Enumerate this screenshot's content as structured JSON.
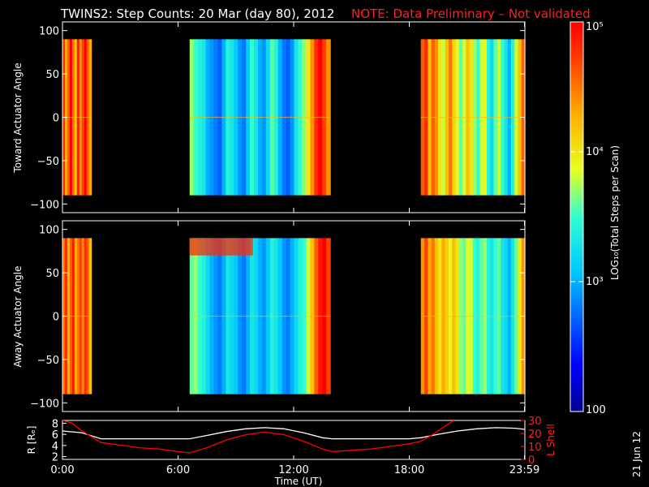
{
  "title": {
    "main": "TWINS2: Step Counts: 20 Mar (day  80), 2012",
    "note": "NOTE: Data Preliminary – Not validated"
  },
  "date_stamp": "21 Jun 12",
  "colorbar": {
    "label": "LOG₁₀(Total Steps per Scan)",
    "ticks": [
      "100",
      "10³",
      "10⁴",
      "10⁵"
    ],
    "tick_values": [
      100,
      1000,
      10000,
      100000
    ],
    "scale": "log",
    "range": [
      100,
      100000
    ],
    "colormap": "rainbow (blue to red)"
  },
  "x_axis": {
    "label": "Time (UT)",
    "ticks": [
      "0:00",
      "6:00",
      "12:00",
      "18:00",
      "23:59"
    ],
    "tick_hours": [
      0,
      6,
      12,
      18,
      23.98
    ],
    "range_hours": [
      0,
      24
    ]
  },
  "chart_data": [
    {
      "type": "heatmap",
      "panel": "toward",
      "ylabel": "Toward Actuator Angle",
      "yticks": [
        "100",
        "50",
        "0",
        "−50",
        "−100"
      ],
      "ytick_values": [
        100,
        50,
        0,
        -50,
        -100
      ],
      "ylim": [
        -110,
        110
      ],
      "z_scale": "log10 counts",
      "data_blocks_hours": [
        [
          0,
          1.5
        ],
        [
          6.6,
          13.9
        ],
        [
          18.6,
          24
        ]
      ],
      "angle_extent": [
        -90,
        90
      ],
      "column_log10_counts": {
        "block1": [
          4.8,
          4.3,
          4.6,
          5.0,
          4.5,
          4.2,
          4.9,
          4.4,
          4.7,
          5.0,
          4.6,
          4.3
        ],
        "block2": [
          3.7,
          3.5,
          3.4,
          3.3,
          3.0,
          2.9,
          2.8,
          2.7,
          3.0,
          3.4,
          3.3,
          3.1,
          2.9,
          2.8,
          3.1,
          3.5,
          3.3,
          3.0,
          2.9,
          3.2,
          3.6,
          3.4,
          3.0,
          2.8,
          2.7,
          2.9,
          3.3,
          3.5,
          3.7,
          4.0,
          4.4,
          4.8,
          5.0,
          4.7,
          4.4
        ],
        "block3": [
          4.6,
          4.8,
          4.2,
          4.6,
          4.4,
          4.0,
          3.8,
          4.2,
          4.5,
          4.1,
          3.9,
          3.6,
          3.8,
          4.2,
          4.0,
          3.7,
          3.5,
          3.8,
          3.9,
          3.4,
          3.2,
          3.6,
          3.8,
          3.5,
          3.3,
          3.0,
          3.4,
          3.8,
          4.2,
          4.6
        ]
      }
    },
    {
      "type": "heatmap",
      "panel": "away",
      "ylabel": "Away Actuator Angle",
      "yticks": [
        "100",
        "50",
        "0",
        "−50",
        "−100"
      ],
      "ytick_values": [
        100,
        50,
        0,
        -50,
        -100
      ],
      "ylim": [
        -110,
        110
      ],
      "z_scale": "log10 counts",
      "data_blocks_hours": [
        [
          0,
          1.5
        ],
        [
          6.6,
          13.9
        ],
        [
          18.6,
          24
        ]
      ],
      "angle_extent": [
        -90,
        90
      ],
      "column_log10_counts": {
        "block1": [
          4.5,
          4.8,
          4.2,
          4.6,
          4.9,
          4.3,
          4.5,
          4.7,
          4.4,
          4.8,
          4.6,
          4.2
        ],
        "block2": [
          3.6,
          3.7,
          3.5,
          3.4,
          3.2,
          3.0,
          2.9,
          2.8,
          3.0,
          3.3,
          3.2,
          3.1,
          2.9,
          2.8,
          3.0,
          3.3,
          3.2,
          3.0,
          2.9,
          3.1,
          3.4,
          3.3,
          3.1,
          2.9,
          2.8,
          3.0,
          3.2,
          3.4,
          3.5,
          3.8,
          4.2,
          4.6,
          4.9,
          5.0,
          4.7
        ],
        "block3": [
          4.4,
          4.7,
          4.3,
          4.5,
          4.2,
          4.0,
          4.3,
          4.1,
          3.9,
          4.2,
          4.0,
          3.7,
          3.6,
          3.9,
          3.8,
          3.5,
          3.4,
          3.6,
          3.7,
          3.4,
          3.3,
          3.5,
          3.6,
          3.3,
          3.2,
          3.0,
          3.3,
          3.6,
          4.0,
          4.4
        ]
      },
      "top_band_log10": 4.8
    },
    {
      "type": "line",
      "panel": "orbit",
      "ylabel": "R [Rₑ]",
      "y2label": "L Shell",
      "yticks": [
        "8",
        "6",
        "4",
        "2"
      ],
      "ytick_values": [
        8,
        6,
        4,
        2
      ],
      "ylim": [
        1.5,
        8.5
      ],
      "y2ticks": [
        "30",
        "20",
        "10",
        "0"
      ],
      "y2tick_values": [
        30,
        20,
        10,
        0
      ],
      "y2lim": [
        0,
        30
      ],
      "series": [
        {
          "axis": "left",
          "color": "#ffffff",
          "x_hours": [
            0,
            1,
            2,
            3,
            4,
            5,
            6,
            6.6,
            7.5,
            8.5,
            9.5,
            10.5,
            11.5,
            12.5,
            13.5,
            14,
            15,
            16,
            17,
            18,
            18.6,
            19.5,
            20.5,
            21.5,
            22.5,
            23.5,
            24
          ],
          "values": [
            6.6,
            6.3,
            5.2,
            5.2,
            5.2,
            5.2,
            5.2,
            5.2,
            5.8,
            6.5,
            7.0,
            7.2,
            7.0,
            6.3,
            5.4,
            5.2,
            5.2,
            5.2,
            5.2,
            5.2,
            5.4,
            6.0,
            6.6,
            7.0,
            7.2,
            7.1,
            6.9
          ]
        },
        {
          "axis": "right",
          "color": "#ff0000",
          "x_hours": [
            0,
            0.5,
            1,
            2,
            3,
            4,
            5,
            6,
            6.6,
            7.5,
            8.5,
            9.5,
            10.5,
            11.5,
            12.5,
            13.5,
            14,
            15,
            16,
            17,
            18,
            18.6,
            19.2,
            19.8,
            20.3
          ],
          "values": [
            30,
            28,
            22,
            13,
            11,
            9,
            8,
            6,
            5,
            9,
            15,
            19,
            21,
            19,
            14,
            8,
            6,
            7,
            8,
            10,
            12,
            14,
            19,
            25,
            30
          ]
        }
      ]
    }
  ]
}
